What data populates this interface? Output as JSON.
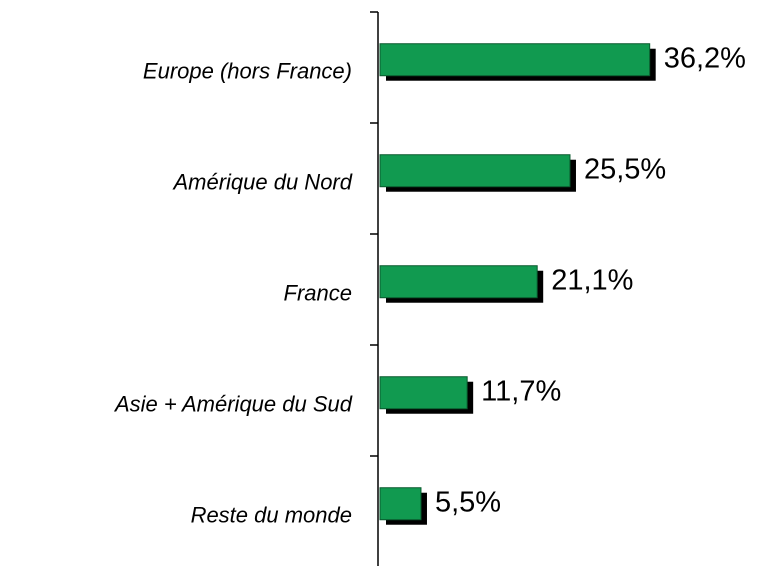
{
  "chart_data": {
    "type": "bar",
    "orientation": "horizontal",
    "categories": [
      "Europe (hors France)",
      "Amérique du Nord",
      "France",
      "Asie + Amérique du Sud",
      "Reste du monde"
    ],
    "values": [
      36.2,
      25.5,
      21.1,
      11.7,
      5.5
    ],
    "value_labels": [
      "36,2%",
      "25,5%",
      "21,1%",
      "11,7%",
      "5,5%"
    ],
    "color": "#119a50"
  }
}
